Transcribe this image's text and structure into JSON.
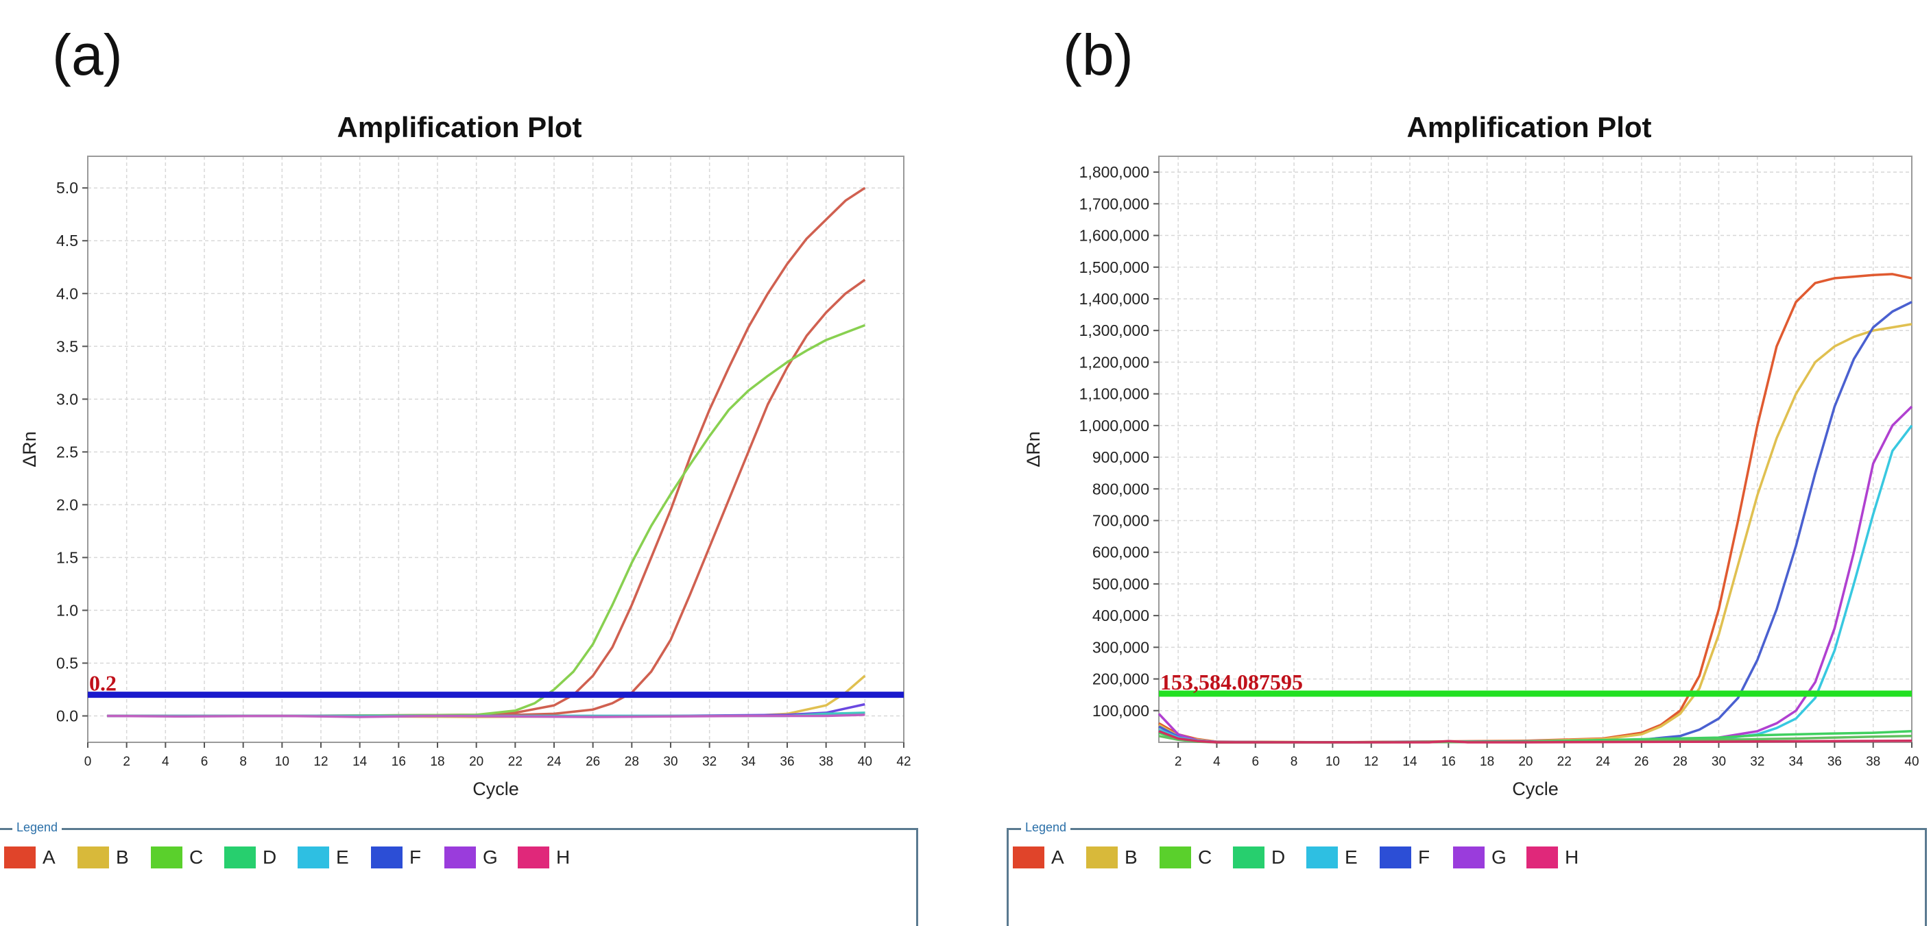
{
  "panels": {
    "a": {
      "label": "(a)"
    },
    "b": {
      "label": "(b)"
    }
  },
  "legend": {
    "title": "Legend",
    "items": [
      {
        "label": "A",
        "color": "#e0442a"
      },
      {
        "label": "B",
        "color": "#d8b93a"
      },
      {
        "label": "C",
        "color": "#5ad02c"
      },
      {
        "label": "D",
        "color": "#27cf6e"
      },
      {
        "label": "E",
        "color": "#2ebfe2"
      },
      {
        "label": "F",
        "color": "#2c4ed6"
      },
      {
        "label": "G",
        "color": "#9a3cdc"
      },
      {
        "label": "H",
        "color": "#e0287a"
      }
    ]
  },
  "chart_data": [
    {
      "type": "line",
      "title": "Amplification Plot",
      "xlabel": "Cycle",
      "ylabel": "ΔRn",
      "xlim": [
        0,
        42
      ],
      "ylim": [
        -0.25,
        5.3
      ],
      "xticks": [
        0,
        2,
        4,
        6,
        8,
        10,
        12,
        14,
        16,
        18,
        20,
        22,
        24,
        26,
        28,
        30,
        32,
        34,
        36,
        38,
        40,
        42
      ],
      "yticks": [
        0.0,
        0.5,
        1.0,
        1.5,
        2.0,
        2.5,
        3.0,
        3.5,
        4.0,
        4.5,
        5.0
      ],
      "ytick_labels": [
        "0.0",
        "0.5",
        "1.0",
        "1.5",
        "2.0",
        "2.5",
        "3.0",
        "3.5",
        "4.0",
        "4.5",
        "5.0"
      ],
      "grid": true,
      "threshold": {
        "value": 0.2,
        "label": "0.2",
        "color": "#1a1acc",
        "label_color": "#c0101a"
      },
      "series": [
        {
          "color": "#d06050",
          "x": [
            1,
            10,
            20,
            22,
            24,
            25,
            26,
            27,
            28,
            29,
            30,
            31,
            32,
            33,
            34,
            35,
            36,
            37,
            38,
            39,
            40
          ],
          "y": [
            0,
            0,
            0.01,
            0.03,
            0.1,
            0.2,
            0.38,
            0.65,
            1.05,
            1.5,
            1.95,
            2.45,
            2.9,
            3.3,
            3.68,
            4.0,
            4.28,
            4.52,
            4.7,
            4.88,
            5.0
          ]
        },
        {
          "color": "#d06050",
          "x": [
            1,
            10,
            20,
            24,
            26,
            27,
            28,
            29,
            30,
            31,
            32,
            33,
            34,
            35,
            36,
            37,
            38,
            39,
            40
          ],
          "y": [
            0,
            0,
            0,
            0.02,
            0.06,
            0.12,
            0.22,
            0.42,
            0.72,
            1.15,
            1.6,
            2.05,
            2.5,
            2.95,
            3.3,
            3.6,
            3.82,
            4.0,
            4.13
          ]
        },
        {
          "color": "#88d050",
          "x": [
            1,
            10,
            20,
            22,
            23,
            24,
            25,
            26,
            27,
            28,
            29,
            30,
            31,
            32,
            33,
            34,
            35,
            36,
            37,
            38,
            39,
            40
          ],
          "y": [
            0,
            0,
            0.01,
            0.05,
            0.12,
            0.25,
            0.42,
            0.68,
            1.05,
            1.45,
            1.8,
            2.1,
            2.38,
            2.65,
            2.9,
            3.08,
            3.22,
            3.35,
            3.46,
            3.56,
            3.63,
            3.7
          ]
        },
        {
          "color": "#e0c050",
          "x": [
            1,
            10,
            20,
            30,
            34,
            36,
            38,
            39,
            40
          ],
          "y": [
            0,
            0,
            -0.01,
            0,
            0,
            0.02,
            0.1,
            0.22,
            0.38
          ]
        },
        {
          "color": "#6a48e0",
          "x": [
            1,
            10,
            20,
            30,
            36,
            38,
            39,
            40
          ],
          "y": [
            0,
            0,
            0,
            0,
            0.01,
            0.03,
            0.07,
            0.11
          ]
        },
        {
          "color": "#40c8c0",
          "x": [
            1,
            10,
            20,
            30,
            36,
            38,
            40
          ],
          "y": [
            0,
            0,
            0,
            0,
            0,
            0.02,
            0.03
          ]
        },
        {
          "color": "#c060c0",
          "x": [
            1,
            5,
            10,
            14,
            18,
            22,
            26,
            30,
            34,
            38,
            40
          ],
          "y": [
            0,
            -0.005,
            0,
            -0.01,
            0,
            -0.005,
            -0.01,
            -0.005,
            0,
            0,
            0.01
          ]
        }
      ]
    },
    {
      "type": "line",
      "title": "Amplification Plot",
      "xlabel": "Cycle",
      "ylabel": "ΔRn",
      "xlim": [
        1,
        40
      ],
      "ylim": [
        0,
        1850000
      ],
      "xticks": [
        2,
        4,
        6,
        8,
        10,
        12,
        14,
        16,
        18,
        20,
        22,
        24,
        26,
        28,
        30,
        32,
        34,
        36,
        38,
        40
      ],
      "yticks": [
        100000,
        200000,
        300000,
        400000,
        500000,
        600000,
        700000,
        800000,
        900000,
        1000000,
        1100000,
        1200000,
        1300000,
        1400000,
        1500000,
        1600000,
        1700000,
        1800000
      ],
      "ytick_labels": [
        "100,000",
        "200,000",
        "300,000",
        "400,000",
        "500,000",
        "600,000",
        "700,000",
        "800,000",
        "900,000",
        "1,000,000",
        "1,100,000",
        "1,200,000",
        "1,300,000",
        "1,400,000",
        "1,500,000",
        "1,600,000",
        "1,700,000",
        "1,800,000"
      ],
      "grid": true,
      "threshold": {
        "value": 153584.087595,
        "label": "153,584.087595",
        "color": "#22e022",
        "label_color": "#c0101a"
      },
      "series": [
        {
          "color": "#e05a30",
          "x": [
            1,
            2,
            3,
            4,
            10,
            20,
            24,
            26,
            27,
            28,
            29,
            30,
            31,
            32,
            33,
            34,
            35,
            36,
            37,
            38,
            39,
            40
          ],
          "y": [
            60000,
            25000,
            10000,
            2000,
            0,
            5000,
            12000,
            30000,
            55000,
            100000,
            210000,
            420000,
            700000,
            1000000,
            1250000,
            1390000,
            1450000,
            1465000,
            1470000,
            1475000,
            1478000,
            1465000
          ]
        },
        {
          "color": "#e0c050",
          "x": [
            1,
            2,
            3,
            4,
            10,
            20,
            24,
            26,
            27,
            28,
            29,
            30,
            31,
            32,
            33,
            34,
            35,
            36,
            37,
            38,
            39,
            40
          ],
          "y": [
            55000,
            20000,
            8000,
            2000,
            0,
            4000,
            10000,
            25000,
            50000,
            90000,
            170000,
            340000,
            560000,
            780000,
            960000,
            1100000,
            1200000,
            1250000,
            1280000,
            1300000,
            1310000,
            1320000
          ]
        },
        {
          "color": "#4a60d0",
          "x": [
            1,
            2,
            3,
            4,
            10,
            20,
            26,
            28,
            29,
            30,
            31,
            32,
            33,
            34,
            35,
            36,
            37,
            38,
            39,
            40
          ],
          "y": [
            50000,
            18000,
            6000,
            1000,
            0,
            3000,
            8000,
            20000,
            40000,
            75000,
            140000,
            260000,
            420000,
            620000,
            850000,
            1060000,
            1210000,
            1310000,
            1360000,
            1390000
          ]
        },
        {
          "color": "#b040d0",
          "x": [
            1,
            2,
            3,
            4,
            10,
            20,
            28,
            30,
            32,
            33,
            34,
            35,
            36,
            37,
            38,
            39,
            40
          ],
          "y": [
            90000,
            25000,
            6000,
            1000,
            0,
            2000,
            6000,
            15000,
            35000,
            60000,
            100000,
            190000,
            360000,
            600000,
            880000,
            1000000,
            1060000
          ]
        },
        {
          "color": "#38c8e0",
          "x": [
            1,
            2,
            3,
            4,
            10,
            20,
            30,
            32,
            33,
            34,
            35,
            36,
            37,
            38,
            39,
            40
          ],
          "y": [
            40000,
            15000,
            5000,
            0,
            0,
            2000,
            10000,
            25000,
            45000,
            75000,
            140000,
            290000,
            500000,
            720000,
            920000,
            1000000
          ]
        },
        {
          "color": "#40d060",
          "x": [
            1,
            2,
            3,
            4,
            10,
            20,
            30,
            32,
            34,
            36,
            38,
            40
          ],
          "y": [
            30000,
            10000,
            3000,
            0,
            0,
            2000,
            15000,
            22000,
            25000,
            28000,
            30000,
            35000
          ]
        },
        {
          "color": "#60c060",
          "x": [
            1,
            2,
            3,
            4,
            10,
            20,
            30,
            34,
            36,
            38,
            40
          ],
          "y": [
            20000,
            8000,
            2000,
            0,
            0,
            1000,
            8000,
            12000,
            15000,
            18000,
            20000
          ]
        },
        {
          "color": "#d03060",
          "x": [
            1,
            2,
            3,
            4,
            10,
            15,
            16,
            17,
            20,
            30,
            40
          ],
          "y": [
            35000,
            12000,
            4000,
            0,
            0,
            0,
            4000,
            0,
            0,
            2000,
            5000
          ]
        }
      ]
    }
  ]
}
